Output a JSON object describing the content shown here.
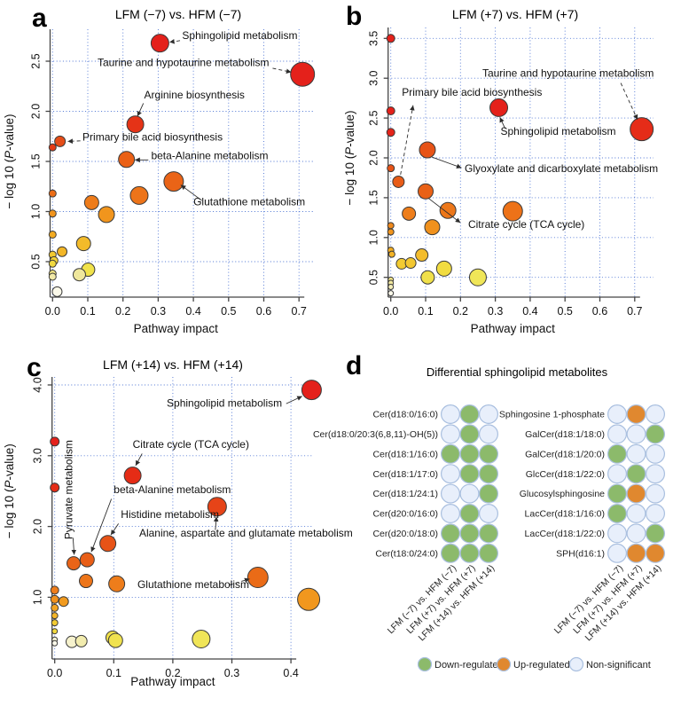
{
  "figure": {
    "panel_letters": [
      "a",
      "b",
      "c",
      "d"
    ],
    "background": "#ffffff",
    "grid_color": "#4d74d4"
  },
  "chart_data": [
    {
      "id": "a",
      "type": "scatter",
      "title": "LFM (−7) vs. HFM (−7)",
      "xlabel": "Pathway impact",
      "ylabel": "− log 10 (P-value)",
      "xlim": [
        -0.02,
        0.75
      ],
      "ylim": [
        0.15,
        2.85
      ],
      "xticks": [
        0.0,
        0.1,
        0.2,
        0.3,
        0.4,
        0.5,
        0.6,
        0.7
      ],
      "xtick_labels": [
        "0.0",
        "0.1",
        "0.2",
        "0.3",
        "0.4",
        "0.5",
        "0.6",
        "0.7"
      ],
      "yticks": [
        0.5,
        1.0,
        1.5,
        2.0,
        2.5
      ],
      "ytick_labels": [
        "0.5",
        "1.0",
        "1.5",
        "2.0",
        "2.5"
      ],
      "grid": "dotted-blue",
      "points": [
        [
          0.305,
          2.68,
          10,
          "#e4211b"
        ],
        [
          0.71,
          2.37,
          13.5,
          "#e4211b"
        ],
        [
          0.235,
          1.87,
          9.5,
          "#e53317"
        ],
        [
          0.021,
          1.7,
          6,
          "#e54d18"
        ],
        [
          0.0,
          1.64,
          4,
          "#e43c15"
        ],
        [
          0.21,
          1.52,
          9,
          "#ea6016"
        ],
        [
          0.344,
          1.3,
          11,
          "#ea6417"
        ],
        [
          0.246,
          1.16,
          10,
          "#ed7419"
        ],
        [
          0.111,
          1.09,
          8,
          "#ee7c1a"
        ],
        [
          0.153,
          0.97,
          9,
          "#f1951d"
        ],
        [
          0.0,
          1.18,
          4,
          "#ec6d17"
        ],
        [
          0.0,
          0.98,
          4,
          "#f1941d"
        ],
        [
          0.0,
          0.77,
          4,
          "#f3ab21"
        ],
        [
          0.088,
          0.68,
          8,
          "#f3bb2a"
        ],
        [
          0.027,
          0.6,
          5.5,
          "#f3b626"
        ],
        [
          0.0,
          0.57,
          4,
          "#f2c930"
        ],
        [
          0.004,
          0.51,
          4.5,
          "#f2d138"
        ],
        [
          0.0,
          0.48,
          4,
          "#f1d93f"
        ],
        [
          0.101,
          0.42,
          7.5,
          "#f0e24a"
        ],
        [
          0.076,
          0.37,
          7,
          "#efe79c"
        ],
        [
          0.0,
          0.38,
          4,
          "#f0e482"
        ],
        [
          0.0,
          0.35,
          4,
          "#f1e9a8"
        ],
        [
          0.013,
          0.2,
          5.5,
          "#fbf9ea"
        ]
      ],
      "annotations": [
        {
          "t": "Sphingolipid metabolism",
          "x": 0.368,
          "y": 2.72,
          "a": "start",
          "d": true,
          "l": [
            0.362,
            2.705,
            0.332,
            2.69
          ]
        },
        {
          "t": "Taurine and hypotaurine metabolism",
          "x": 0.615,
          "y": 2.45,
          "a": "end",
          "d": true,
          "l": [
            0.625,
            2.43,
            0.678,
            2.39
          ]
        },
        {
          "t": "Arginine biosynthesis",
          "x": 0.26,
          "y": 2.13,
          "a": "start",
          "d": false,
          "l": [
            0.258,
            2.08,
            0.241,
            1.95
          ]
        },
        {
          "t": "Primary bile acid biosynthesis",
          "x": 0.085,
          "y": 1.71,
          "a": "start",
          "d": true,
          "l": [
            0.079,
            1.705,
            0.043,
            1.7
          ]
        },
        {
          "t": "beta-Alanine metabolism",
          "x": 0.28,
          "y": 1.52,
          "a": "start",
          "d": false,
          "l": [
            0.272,
            1.515,
            0.234,
            1.515
          ]
        },
        {
          "t": "Glutathione metabolism",
          "x": 0.4,
          "y": 1.06,
          "a": "start",
          "d": false,
          "l": [
            0.424,
            1.11,
            0.364,
            1.265
          ]
        }
      ]
    },
    {
      "id": "b",
      "type": "scatter",
      "title": "LFM (+7) vs. HFM (+7)",
      "xlabel": "Pathway impact",
      "ylabel": "− log 10 (P-value)",
      "xlim": [
        -0.02,
        0.75
      ],
      "ylim": [
        0.2,
        3.6
      ],
      "xticks": [
        0.0,
        0.1,
        0.2,
        0.3,
        0.4,
        0.5,
        0.6,
        0.7
      ],
      "xtick_labels": [
        "0.0",
        "0.1",
        "0.2",
        "0.3",
        "0.4",
        "0.5",
        "0.6",
        "0.7"
      ],
      "yticks": [
        0.5,
        1.0,
        1.5,
        2.0,
        2.5,
        3.0,
        3.5
      ],
      "ytick_labels": [
        "0.5",
        "1.0",
        "1.5",
        "2.0",
        "2.5",
        "3.0",
        "3.5"
      ],
      "grid": "dotted-blue",
      "points": [
        [
          0.0,
          3.5,
          4.5,
          "#e4211b"
        ],
        [
          0.0,
          2.59,
          4.5,
          "#e4211b"
        ],
        [
          0.0,
          2.32,
          4.5,
          "#e4241a"
        ],
        [
          0.31,
          2.63,
          10,
          "#e4211b"
        ],
        [
          0.72,
          2.36,
          13,
          "#e52c18"
        ],
        [
          0.105,
          2.1,
          9,
          "#e75317"
        ],
        [
          0.0,
          1.87,
          4,
          "#e75317"
        ],
        [
          0.022,
          1.7,
          6.5,
          "#e85c18"
        ],
        [
          0.1,
          1.58,
          8.5,
          "#e96117"
        ],
        [
          0.052,
          1.3,
          7.5,
          "#ee7e1b"
        ],
        [
          0.164,
          1.34,
          9,
          "#ed7719"
        ],
        [
          0.35,
          1.33,
          11,
          "#ed7218"
        ],
        [
          0.119,
          1.13,
          8.5,
          "#f0911d"
        ],
        [
          0.0,
          1.15,
          3.5,
          "#ef891c"
        ],
        [
          0.0,
          1.07,
          3.5,
          "#f1951d"
        ],
        [
          0.0,
          0.84,
          3.5,
          "#f3ad22"
        ],
        [
          0.003,
          0.79,
          3.5,
          "#f3b326"
        ],
        [
          0.031,
          0.67,
          6,
          "#f2cb32"
        ],
        [
          0.057,
          0.68,
          6,
          "#f2c730"
        ],
        [
          0.089,
          0.78,
          7,
          "#f3bc2b"
        ],
        [
          0.153,
          0.61,
          8.5,
          "#f1dc41"
        ],
        [
          0.106,
          0.5,
          7.5,
          "#f0e04a"
        ],
        [
          0.25,
          0.5,
          9.5,
          "#f0e658"
        ],
        [
          0.0,
          0.47,
          3,
          "#f0e387"
        ],
        [
          0.0,
          0.43,
          3,
          "#f1e79e"
        ],
        [
          0.0,
          0.38,
          3,
          "#f3edb8"
        ],
        [
          0.0,
          0.3,
          3,
          "#fbf9ea"
        ]
      ],
      "annotations": [
        {
          "t": "Taurine and hypotaurine metabolism",
          "x": 0.755,
          "y": 3.02,
          "a": "end",
          "d": true,
          "l": [
            0.66,
            2.94,
            0.708,
            2.48
          ]
        },
        {
          "t": "Primary bile acid biosynthesis",
          "x": 0.032,
          "y": 2.78,
          "a": "start",
          "d": true,
          "l": [
            0.028,
            1.79,
            0.064,
            2.66
          ]
        },
        {
          "t": "Sphingolipid metabolism",
          "x": 0.315,
          "y": 2.29,
          "a": "start",
          "d": false,
          "l": [
            0.328,
            2.37,
            0.313,
            2.51
          ]
        },
        {
          "t": "Glyoxylate and dicarboxylate metabolism",
          "x": 0.212,
          "y": 1.82,
          "a": "start",
          "d": false,
          "l": [
            0.118,
            2.01,
            0.203,
            1.875
          ]
        },
        {
          "t": "Citrate cycle (TCA cycle)",
          "x": 0.222,
          "y": 1.12,
          "a": "start",
          "d": false,
          "l": [
            0.109,
            1.49,
            0.2,
            1.185
          ]
        }
      ]
    },
    {
      "id": "c",
      "type": "scatter",
      "title": "LFM (+14) vs. HFM (+14)",
      "xlabel": "Pathway impact",
      "ylabel": "− log 10 (P-value)",
      "xlim": [
        -0.012,
        0.45
      ],
      "ylim": [
        0.3,
        4.15
      ],
      "xticks": [
        0.0,
        0.1,
        0.2,
        0.3,
        0.4
      ],
      "xtick_labels": [
        "0.0",
        "0.1",
        "0.2",
        "0.3",
        "0.4"
      ],
      "yticks": [
        1.0,
        2.0,
        3.0,
        4.0
      ],
      "ytick_labels": [
        "1.0",
        "2.0",
        "3.0",
        "4.0"
      ],
      "grid": "dotted-blue",
      "points": [
        [
          0.435,
          3.93,
          11,
          "#e4211b"
        ],
        [
          0.0,
          3.2,
          5,
          "#e4211b"
        ],
        [
          0.0,
          2.55,
          5,
          "#e52c16"
        ],
        [
          0.132,
          2.72,
          9.5,
          "#e52c16"
        ],
        [
          0.275,
          2.28,
          10.5,
          "#e64418"
        ],
        [
          0.09,
          1.76,
          9,
          "#e75317"
        ],
        [
          0.055,
          1.53,
          8,
          "#e85e17"
        ],
        [
          0.032,
          1.48,
          7.5,
          "#e96418"
        ],
        [
          0.053,
          1.23,
          7.5,
          "#ed7519"
        ],
        [
          0.105,
          1.19,
          9,
          "#ee7d1b"
        ],
        [
          0.344,
          1.28,
          11.5,
          "#ea6b17"
        ],
        [
          0.43,
          0.97,
          12.5,
          "#f1971e"
        ],
        [
          0.0,
          1.1,
          4.5,
          "#ee7d1b"
        ],
        [
          0.0,
          0.97,
          4.5,
          "#f1911d"
        ],
        [
          0.015,
          0.94,
          5.5,
          "#f19a1e"
        ],
        [
          0.0,
          0.85,
          4,
          "#f2a321"
        ],
        [
          0.0,
          0.74,
          3.5,
          "#f3b528"
        ],
        [
          0.0,
          0.64,
          3.5,
          "#f2cb33"
        ],
        [
          0.0,
          0.52,
          3,
          "#f1d83e"
        ],
        [
          0.0,
          0.4,
          3,
          "#f7f3d5"
        ],
        [
          0.0,
          0.35,
          3,
          "#fbf9ea"
        ],
        [
          0.029,
          0.37,
          6.5,
          "#f6f2cd"
        ],
        [
          0.045,
          0.38,
          6.5,
          "#f2ecae"
        ],
        [
          0.098,
          0.43,
          7.5,
          "#f0e04a"
        ],
        [
          0.103,
          0.39,
          8,
          "#f0e24f"
        ],
        [
          0.248,
          0.41,
          10,
          "#f0e558"
        ]
      ],
      "annotations": [
        {
          "t": "Sphingolipid metabolism",
          "x": 0.385,
          "y": 3.69,
          "a": "end",
          "d": false,
          "l": [
            0.392,
            3.735,
            0.419,
            3.84
          ]
        },
        {
          "t": "Citrate cycle (TCA cycle)",
          "x": 0.132,
          "y": 3.11,
          "a": "start",
          "d": false,
          "l": [
            0.148,
            3.03,
            0.137,
            2.86
          ]
        },
        {
          "t": "beta-Alanine metabolism",
          "x": 0.1,
          "y": 2.47,
          "a": "start",
          "d": false,
          "l": [
            0.096,
            2.39,
            0.062,
            1.64
          ]
        },
        {
          "t": "Histidine metabolism",
          "x": 0.112,
          "y": 2.12,
          "a": "start",
          "d": false,
          "l": [
            0.108,
            2.04,
            0.095,
            1.88
          ]
        },
        {
          "t": "Alanine, aspartate and glutamate metabolism",
          "x": 0.143,
          "y": 1.86,
          "a": "start",
          "d": false,
          "l": [
            0.272,
            1.95,
            0.274,
            2.14
          ]
        },
        {
          "t": "Pyruvate metabolism",
          "x": 0.03,
          "y": 2.52,
          "a": "middle",
          "d": false,
          "rot": -90,
          "l": [
            0.031,
            1.84,
            0.033,
            1.6
          ]
        },
        {
          "t": "Glutathione metabolism",
          "x": 0.14,
          "y": 1.13,
          "a": "start",
          "d": true,
          "l": [
            0.296,
            1.175,
            0.33,
            1.26
          ]
        }
      ]
    },
    {
      "id": "d",
      "type": "table",
      "title": "Differential sphingolipid metabolites",
      "columns": [
        "LFM (−7) vs. HFM (−7)",
        "LFM (+7) vs. HFM (+7)",
        "LFM (+14) vs. HFM (+14)"
      ],
      "left_rows": [
        {
          "label": "Cer(d18:0/16:0)",
          "cells": [
            "non",
            "down",
            "non"
          ]
        },
        {
          "label": "Cer(d18:0/20:3(6,8,11)-OH(5))",
          "cells": [
            "non",
            "down",
            "non"
          ]
        },
        {
          "label": "Cer(d18:1/16:0)",
          "cells": [
            "down",
            "down",
            "down"
          ]
        },
        {
          "label": "Cer(d18:1/17:0)",
          "cells": [
            "non",
            "down",
            "down"
          ]
        },
        {
          "label": "Cer(d18:1/24:1)",
          "cells": [
            "non",
            "non",
            "down"
          ]
        },
        {
          "label": "Cer(d20:0/16:0)",
          "cells": [
            "non",
            "down",
            "non"
          ]
        },
        {
          "label": "Cer(d20:0/18:0)",
          "cells": [
            "down",
            "down",
            "down"
          ]
        },
        {
          "label": "Cer(t18:0/24:0)",
          "cells": [
            "down",
            "down",
            "down"
          ]
        }
      ],
      "right_rows": [
        {
          "label": "Sphingosine 1-phosphate",
          "cells": [
            "non",
            "up",
            "non"
          ]
        },
        {
          "label": "GalCer(d18:1/18:0)",
          "cells": [
            "non",
            "non",
            "down"
          ]
        },
        {
          "label": "GalCer(d18:1/20:0)",
          "cells": [
            "down",
            "non",
            "non"
          ]
        },
        {
          "label": "GlcCer(d18:1/22:0)",
          "cells": [
            "non",
            "down",
            "non"
          ]
        },
        {
          "label": "Glucosylsphingosine",
          "cells": [
            "down",
            "up",
            "non"
          ]
        },
        {
          "label": "LacCer(d18:1/16:0)",
          "cells": [
            "down",
            "non",
            "non"
          ]
        },
        {
          "label": "LacCer(d18:1/22:0)",
          "cells": [
            "non",
            "non",
            "down"
          ]
        },
        {
          "label": "SPH(d16:1)",
          "cells": [
            "non",
            "up",
            "up"
          ]
        }
      ],
      "legend": [
        {
          "label": "Down-regulated",
          "key": "down"
        },
        {
          "label": "Up-regulated",
          "key": "up"
        },
        {
          "label": "Non-significant",
          "key": "non"
        }
      ],
      "cell_colors": {
        "down": "#8cba6b",
        "up": "#e0882f",
        "non": "#e8effb",
        "stroke": "#a9bfdf"
      }
    }
  ]
}
